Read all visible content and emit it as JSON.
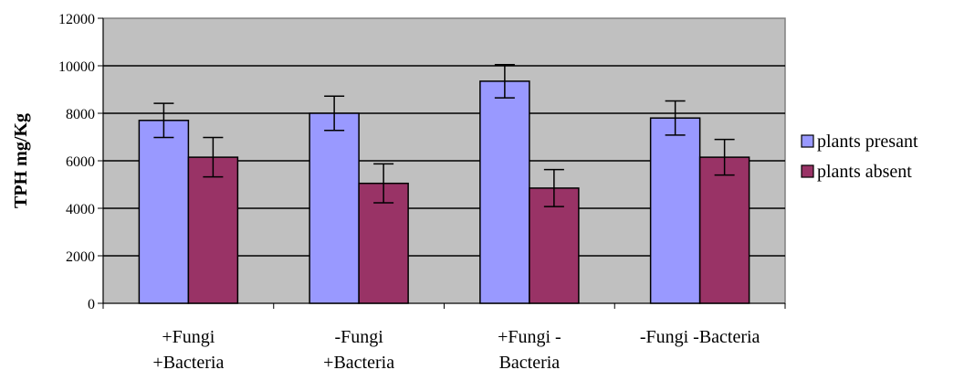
{
  "chart_data": {
    "type": "bar",
    "title": "",
    "xlabel": "",
    "ylabel": "TPH mg/Kg",
    "ylim": [
      0,
      12000
    ],
    "yticks": [
      0,
      2000,
      4000,
      6000,
      8000,
      10000,
      12000
    ],
    "categories": [
      [
        "+Fungi",
        "+Bacteria"
      ],
      [
        "-Fungi",
        "+Bacteria"
      ],
      [
        "+Fungi -",
        "Bacteria"
      ],
      [
        "-Fungi -Bacteria"
      ]
    ],
    "series": [
      {
        "name": "plants presant",
        "color": "#9999ff",
        "values": [
          7700,
          8000,
          9350,
          7800
        ],
        "errors": [
          720,
          720,
          700,
          720
        ]
      },
      {
        "name": "plants absent",
        "color": "#993366",
        "values": [
          6150,
          5050,
          4850,
          6150
        ],
        "errors": [
          830,
          820,
          780,
          750
        ]
      }
    ],
    "grid": true,
    "plot_background": "#c0c0c0",
    "legend_position": "right"
  }
}
